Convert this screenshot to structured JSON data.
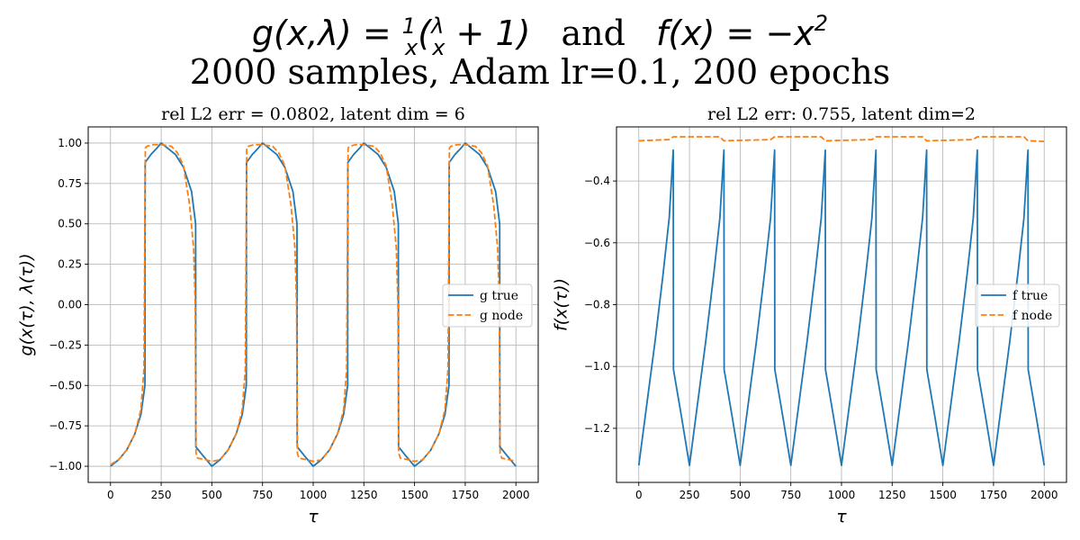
{
  "figure": {
    "title_parts": {
      "g_lhs": "g(x,λ) = ",
      "frac1_num": "1",
      "frac1_den": "x",
      "g_open": "(",
      "frac2_num": "λ",
      "frac2_den": "x",
      "g_rest": " + 1)",
      "and_text": "and",
      "f_expr": "f(x) = −x",
      "f_exp": "2"
    },
    "subtitle": "2000 samples, Adam lr=0.1, 200 epochs"
  },
  "chart_data": [
    {
      "type": "line",
      "title": "rel L2 err = 0.0802, latent dim = 6",
      "xlabel": "τ",
      "ylabel": "g(x(τ), λ(τ))",
      "xlim": [
        -110,
        2110
      ],
      "ylim": [
        -1.1,
        1.1
      ],
      "xticks": [
        0,
        250,
        500,
        750,
        1000,
        1250,
        1500,
        1750,
        2000
      ],
      "xtick_labels": [
        "0",
        "250",
        "500",
        "750",
        "1000",
        "1250",
        "1500",
        "1750",
        "2000"
      ],
      "yticks": [
        -1.0,
        -0.75,
        -0.5,
        -0.25,
        0.0,
        0.25,
        0.5,
        0.75,
        1.0
      ],
      "ytick_labels": [
        "−1.00",
        "−0.75",
        "−0.50",
        "−0.25",
        "0.00",
        "0.25",
        "0.50",
        "0.75",
        "1.00"
      ],
      "grid": true,
      "legend_position": "center-right",
      "series": [
        {
          "name": "g true",
          "color": "#1f77b4",
          "dash": "solid",
          "x": [
            0,
            40,
            80,
            120,
            150,
            170,
            171,
            200,
            230,
            250,
            280,
            320,
            360,
            400,
            420,
            421,
            460,
            500,
            540,
            580,
            620,
            650,
            670,
            671,
            700,
            730,
            750,
            780,
            820,
            860,
            900,
            920,
            921,
            960,
            1000,
            1040,
            1080,
            1120,
            1150,
            1170,
            1171,
            1200,
            1230,
            1250,
            1280,
            1320,
            1360,
            1400,
            1420,
            1421,
            1460,
            1500,
            1540,
            1580,
            1620,
            1650,
            1670,
            1671,
            1700,
            1730,
            1750,
            1780,
            1820,
            1860,
            1900,
            1920,
            1921,
            1960,
            2000
          ],
          "y": [
            -1.0,
            -0.96,
            -0.9,
            -0.8,
            -0.68,
            -0.5,
            0.88,
            0.93,
            0.97,
            1.0,
            0.97,
            0.93,
            0.85,
            0.7,
            0.5,
            -0.88,
            -0.94,
            -1.0,
            -0.96,
            -0.9,
            -0.8,
            -0.68,
            -0.5,
            0.88,
            0.93,
            0.97,
            1.0,
            0.97,
            0.93,
            0.85,
            0.7,
            0.5,
            -0.88,
            -0.94,
            -1.0,
            -0.96,
            -0.9,
            -0.8,
            -0.68,
            -0.5,
            0.88,
            0.93,
            0.97,
            1.0,
            0.97,
            0.93,
            0.85,
            0.7,
            0.5,
            -0.88,
            -0.94,
            -1.0,
            -0.96,
            -0.9,
            -0.8,
            -0.68,
            -0.5,
            0.88,
            0.93,
            0.97,
            1.0,
            0.97,
            0.93,
            0.85,
            0.7,
            0.5,
            -0.88,
            -0.94,
            -1.0
          ]
        },
        {
          "name": "g node",
          "color": "#ff7f0e",
          "dash": "dashed",
          "x": [
            0,
            40,
            80,
            120,
            150,
            165,
            172,
            180,
            210,
            250,
            300,
            330,
            360,
            390,
            410,
            418,
            422,
            430,
            470,
            500,
            540,
            580,
            620,
            650,
            665,
            672,
            680,
            710,
            750,
            800,
            830,
            860,
            890,
            910,
            918,
            922,
            930,
            970,
            1000,
            1040,
            1080,
            1120,
            1150,
            1165,
            1172,
            1180,
            1210,
            1250,
            1300,
            1330,
            1360,
            1390,
            1410,
            1418,
            1422,
            1430,
            1470,
            1500,
            1540,
            1580,
            1620,
            1650,
            1665,
            1672,
            1680,
            1710,
            1750,
            1800,
            1830,
            1860,
            1890,
            1910,
            1918,
            1922,
            1930,
            1970,
            2000
          ],
          "y": [
            -0.99,
            -0.96,
            -0.9,
            -0.8,
            -0.65,
            -0.4,
            0.97,
            0.98,
            0.99,
            0.99,
            0.98,
            0.94,
            0.86,
            0.62,
            0.35,
            0.0,
            -0.92,
            -0.95,
            -0.96,
            -0.97,
            -0.96,
            -0.9,
            -0.8,
            -0.65,
            -0.4,
            0.97,
            0.98,
            0.99,
            0.99,
            0.98,
            0.94,
            0.86,
            0.62,
            0.35,
            0.0,
            -0.92,
            -0.95,
            -0.96,
            -0.97,
            -0.96,
            -0.9,
            -0.8,
            -0.65,
            -0.4,
            0.97,
            0.98,
            0.99,
            0.99,
            0.98,
            0.94,
            0.86,
            0.62,
            0.35,
            0.0,
            -0.92,
            -0.95,
            -0.96,
            -0.97,
            -0.96,
            -0.9,
            -0.8,
            -0.65,
            -0.4,
            0.97,
            0.98,
            0.99,
            0.99,
            0.98,
            0.94,
            0.86,
            0.62,
            0.35,
            0.0,
            -0.92,
            -0.95,
            -0.96,
            -0.97
          ]
        }
      ]
    },
    {
      "type": "line",
      "title": "rel L2 err: 0.755, latent dim=2",
      "xlabel": "τ",
      "ylabel": "f(x(τ))",
      "xlim": [
        -110,
        2110
      ],
      "ylim": [
        -1.375,
        -0.225
      ],
      "xticks": [
        0,
        250,
        500,
        750,
        1000,
        1250,
        1500,
        1750,
        2000
      ],
      "xtick_labels": [
        "0",
        "250",
        "500",
        "750",
        "1000",
        "1250",
        "1500",
        "1750",
        "2000"
      ],
      "yticks": [
        -1.2,
        -1.0,
        -0.8,
        -0.6,
        -0.4
      ],
      "ytick_labels": [
        "−1.2",
        "−1.0",
        "−0.8",
        "−0.6",
        "−0.4"
      ],
      "grid": true,
      "legend_position": "center-right",
      "series": [
        {
          "name": "f true",
          "color": "#1f77b4",
          "dash": "solid",
          "x": [
            0,
            40,
            80,
            120,
            150,
            170,
            171,
            210,
            250,
            290,
            330,
            370,
            400,
            420,
            421,
            460,
            500,
            540,
            580,
            620,
            650,
            670,
            671,
            710,
            750,
            790,
            830,
            870,
            900,
            920,
            921,
            960,
            1000,
            1040,
            1080,
            1120,
            1150,
            1170,
            1171,
            1210,
            1250,
            1290,
            1330,
            1370,
            1400,
            1420,
            1421,
            1460,
            1500,
            1540,
            1580,
            1620,
            1650,
            1670,
            1671,
            1710,
            1750,
            1790,
            1830,
            1870,
            1900,
            1920,
            1921,
            1960,
            2000
          ],
          "y": [
            -1.32,
            -1.12,
            -0.92,
            -0.7,
            -0.52,
            -0.3,
            -1.01,
            -1.16,
            -1.32,
            -1.12,
            -0.92,
            -0.7,
            -0.52,
            -0.3,
            -1.01,
            -1.16,
            -1.32,
            -1.12,
            -0.92,
            -0.7,
            -0.52,
            -0.3,
            -1.01,
            -1.16,
            -1.32,
            -1.12,
            -0.92,
            -0.7,
            -0.52,
            -0.3,
            -1.01,
            -1.16,
            -1.32,
            -1.12,
            -0.92,
            -0.7,
            -0.52,
            -0.3,
            -1.01,
            -1.16,
            -1.32,
            -1.12,
            -0.92,
            -0.7,
            -0.52,
            -0.3,
            -1.01,
            -1.16,
            -1.32,
            -1.12,
            -0.92,
            -0.7,
            -0.52,
            -0.3,
            -1.01,
            -1.16,
            -1.32,
            -1.12,
            -0.92,
            -0.7,
            -0.52,
            -0.3,
            -1.01,
            -1.16,
            -1.32
          ]
        },
        {
          "name": "f node",
          "color": "#ff7f0e",
          "dash": "dashed",
          "x": [
            0,
            150,
            170,
            400,
            420,
            650,
            670,
            900,
            920,
            1150,
            1170,
            1400,
            1420,
            1650,
            1670,
            1900,
            1920,
            2000
          ],
          "y": [
            -0.27,
            -0.266,
            -0.257,
            -0.257,
            -0.27,
            -0.266,
            -0.257,
            -0.257,
            -0.27,
            -0.266,
            -0.257,
            -0.257,
            -0.27,
            -0.266,
            -0.257,
            -0.257,
            -0.27,
            -0.272
          ]
        }
      ]
    }
  ]
}
